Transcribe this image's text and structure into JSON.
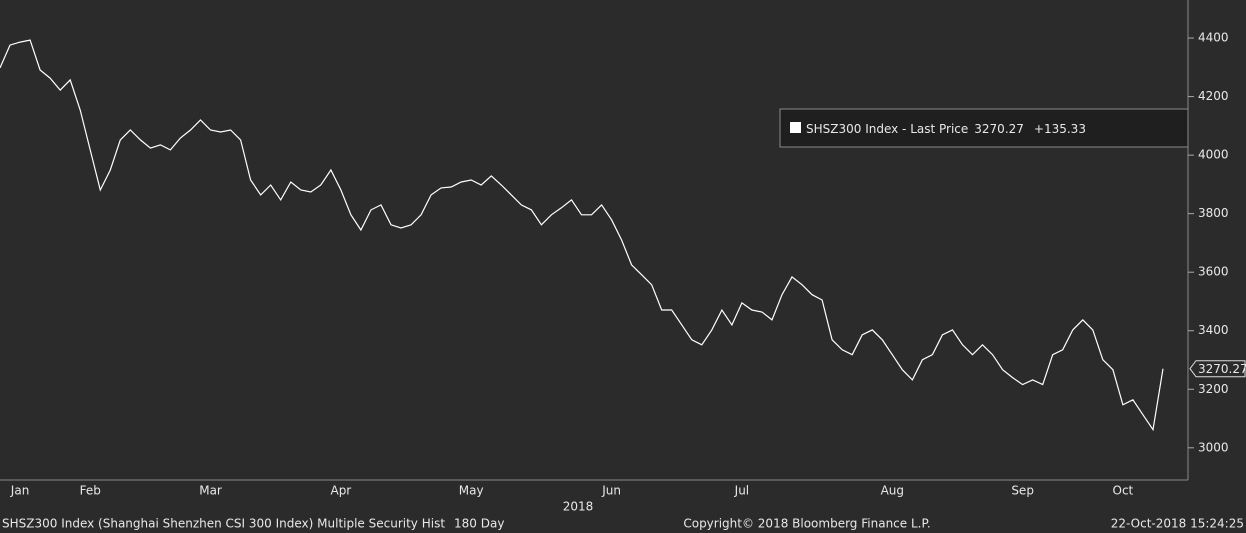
{
  "chart_data": {
    "type": "line",
    "categories": [
      null,
      null,
      "Jan",
      null,
      null,
      null,
      null,
      null,
      null,
      "Feb",
      null,
      null,
      null,
      null,
      null,
      null,
      null,
      null,
      null,
      null,
      null,
      "Mar",
      null,
      null,
      null,
      null,
      null,
      null,
      null,
      null,
      null,
      null,
      null,
      null,
      "Apr",
      null,
      null,
      null,
      null,
      null,
      null,
      null,
      null,
      null,
      null,
      null,
      null,
      "May",
      null,
      null,
      null,
      null,
      null,
      null,
      null,
      null,
      null,
      null,
      null,
      null,
      null,
      "Jun",
      null,
      null,
      null,
      null,
      null,
      null,
      null,
      null,
      null,
      null,
      null,
      null,
      "Jul",
      null,
      null,
      null,
      null,
      null,
      null,
      null,
      null,
      null,
      null,
      null,
      null,
      null,
      null,
      "Aug",
      null,
      null,
      null,
      null,
      null,
      null,
      null,
      null,
      null,
      null,
      null,
      null,
      "Sep",
      null,
      null,
      null,
      null,
      null,
      null,
      null,
      null,
      null,
      "Oct",
      null,
      null,
      null,
      null
    ],
    "x_label": "2018",
    "series": [
      {
        "name": "SHSZ300 Index - Last Price",
        "color": "#ffffff",
        "values": [
          4298,
          4376,
          4386,
          4393,
          4291,
          4263,
          4222,
          4257,
          4154,
          4018,
          3881,
          3949,
          4052,
          4086,
          4052,
          4024,
          4035,
          4018,
          4059,
          4086,
          4120,
          4086,
          4079,
          4086,
          4052,
          3915,
          3864,
          3898,
          3847,
          3908,
          3881,
          3874,
          3898,
          3949,
          3881,
          3796,
          3744,
          3813,
          3830,
          3762,
          3751,
          3762,
          3796,
          3864,
          3888,
          3891,
          3908,
          3915,
          3898,
          3929,
          3898,
          3864,
          3830,
          3813,
          3762,
          3796,
          3820,
          3847,
          3796,
          3796,
          3830,
          3779,
          3710,
          3625,
          3591,
          3557,
          3471,
          3471,
          3420,
          3369,
          3352,
          3403,
          3471,
          3420,
          3495,
          3471,
          3464,
          3437,
          3523,
          3584,
          3557,
          3523,
          3505,
          3369,
          3335,
          3318,
          3386,
          3403,
          3369,
          3318,
          3267,
          3232,
          3301,
          3318,
          3386,
          3403,
          3352,
          3318,
          3352,
          3318,
          3267,
          3240,
          3216,
          3232,
          3216,
          3318,
          3335,
          3403,
          3437,
          3403,
          3301,
          3267,
          3147,
          3164,
          3113,
          3062,
          3270.27
        ],
        "change_label": "+135.33"
      }
    ],
    "ylim": [
      2890,
      4530
    ],
    "yticks": [
      3000,
      3200,
      3400,
      3600,
      3800,
      4000,
      4200,
      4400
    ],
    "legend": "upper-right",
    "background": "#2b2b2b",
    "footer": {
      "security": "SHSZ300 Index (Shanghai Shenzhen CSI 300 Index) Multiple Security Hist",
      "period": "180 Day",
      "copyright": "Copyright© 2018 Bloomberg Finance L.P.",
      "timestamp": "22-Oct-2018 15:24:25"
    }
  }
}
